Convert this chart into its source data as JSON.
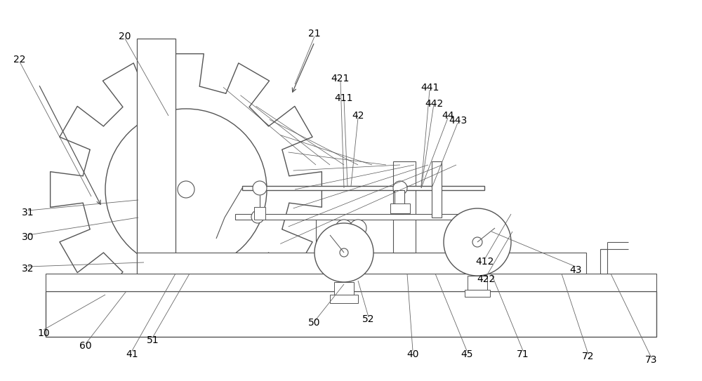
{
  "bg": "#ffffff",
  "lc": "#555555",
  "tc": "#000000",
  "lw": 0.9,
  "fs": 9.5,
  "figw": 10.0,
  "figh": 5.43
}
